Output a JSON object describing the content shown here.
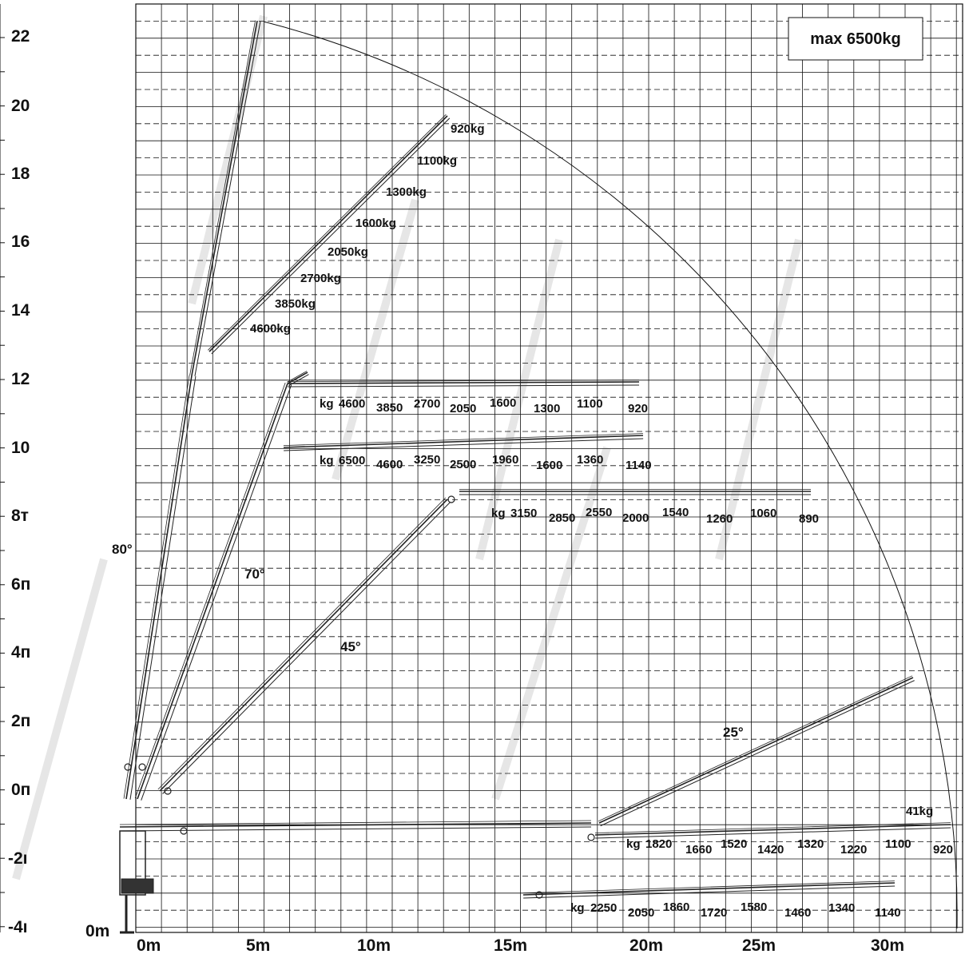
{
  "header": {
    "max_load": "max 6500kg"
  },
  "y_axis": {
    "labels": [
      "22",
      "20",
      "18",
      "16",
      "14",
      "12",
      "10",
      "8т",
      "6п",
      "4п",
      "2п",
      "0п",
      "-2ı",
      "-4ı"
    ],
    "origin_label": "0m"
  },
  "x_axis": {
    "labels": [
      "0m",
      "5m",
      "10m",
      "15m",
      "20m",
      "25m",
      "30m"
    ]
  },
  "angles": [
    "80°",
    "70°",
    "45°",
    "25°"
  ],
  "configurations": [
    {
      "id": "80deg-diagonal",
      "loads": [
        "920kg",
        "1100kg",
        "1300kg",
        "1600kg",
        "2050kg",
        "2700kg",
        "3850kg",
        "4600kg"
      ]
    },
    {
      "id": "upper-horizontal-12m",
      "prefix": "kg",
      "loads": [
        "4600",
        "3850",
        "2700",
        "2050",
        "1600",
        "1300",
        "1100",
        "920"
      ]
    },
    {
      "id": "upper-horizontal-10m",
      "prefix": "kg",
      "loads": [
        "6500",
        "4600",
        "3250",
        "2500",
        "1960",
        "1600",
        "1360",
        "1140"
      ]
    },
    {
      "id": "horizontal-9m",
      "prefix": "kg",
      "loads": [
        "3150",
        "2850",
        "2550",
        "2000",
        "1540",
        "1260",
        "1060",
        "890"
      ]
    },
    {
      "id": "horizontal-minus1m",
      "prefix": "kg",
      "loads": [
        "1820",
        "1660",
        "1520",
        "1420",
        "1320",
        "1220",
        "1100",
        "920"
      ],
      "end_label": "41kg"
    },
    {
      "id": "horizontal-minus3m",
      "prefix": "kg",
      "loads": [
        "2250",
        "2050",
        "1860",
        "1720",
        "1580",
        "1460",
        "1340",
        "1140"
      ]
    }
  ],
  "colors": {
    "grid": "#000000",
    "text": "#111111",
    "boom": "#222222",
    "watermark": "#e8e8e8"
  }
}
